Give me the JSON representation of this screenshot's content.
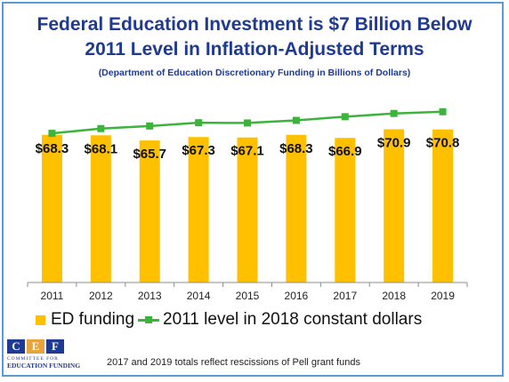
{
  "header": {
    "title_line1": "Federal Education  Investment is $7 Billion Below",
    "title_line2": "2011 Level in Inflation-Adjusted  Terms",
    "subtitle": "(Department of Education Discretionary Funding in Billions of Dollars)"
  },
  "chart_data": {
    "type": "bar",
    "categories": [
      "2011",
      "2012",
      "2013",
      "2014",
      "2015",
      "2016",
      "2017",
      "2018",
      "2019"
    ],
    "series": [
      {
        "name": "ED funding",
        "type": "bar",
        "values": [
          68.3,
          68.1,
          65.7,
          67.3,
          67.1,
          68.3,
          66.9,
          70.9,
          70.8
        ],
        "labels": [
          "$68.3",
          "$68.1",
          "$65.7",
          "$67.3",
          "$67.1",
          "$68.3",
          "$66.9",
          "$70.9",
          "$70.8"
        ],
        "color": "#ffc000"
      },
      {
        "name": "2011 level in 2018 constant dollars",
        "type": "line",
        "values": [
          69.0,
          71.2,
          72.4,
          73.9,
          73.8,
          75.0,
          76.7,
          78.2,
          79.0
        ],
        "color": "#3cb43c"
      }
    ],
    "ylim": [
      0,
      90
    ],
    "grid": false,
    "legend": "bottom"
  },
  "legend": {
    "bar_label": "ED funding",
    "line_label": "2011 level in 2018 constant dollars"
  },
  "logo": {
    "letters": [
      "C",
      "E",
      "F"
    ],
    "line1": "COMMITTEE FOR",
    "line2": "EDUCATION FUNDING"
  },
  "footnote": "2017 and 2019 totals reflect rescissions of Pell grant funds",
  "colors": {
    "title": "#1f3a93",
    "frame": "#5b9bd5"
  }
}
